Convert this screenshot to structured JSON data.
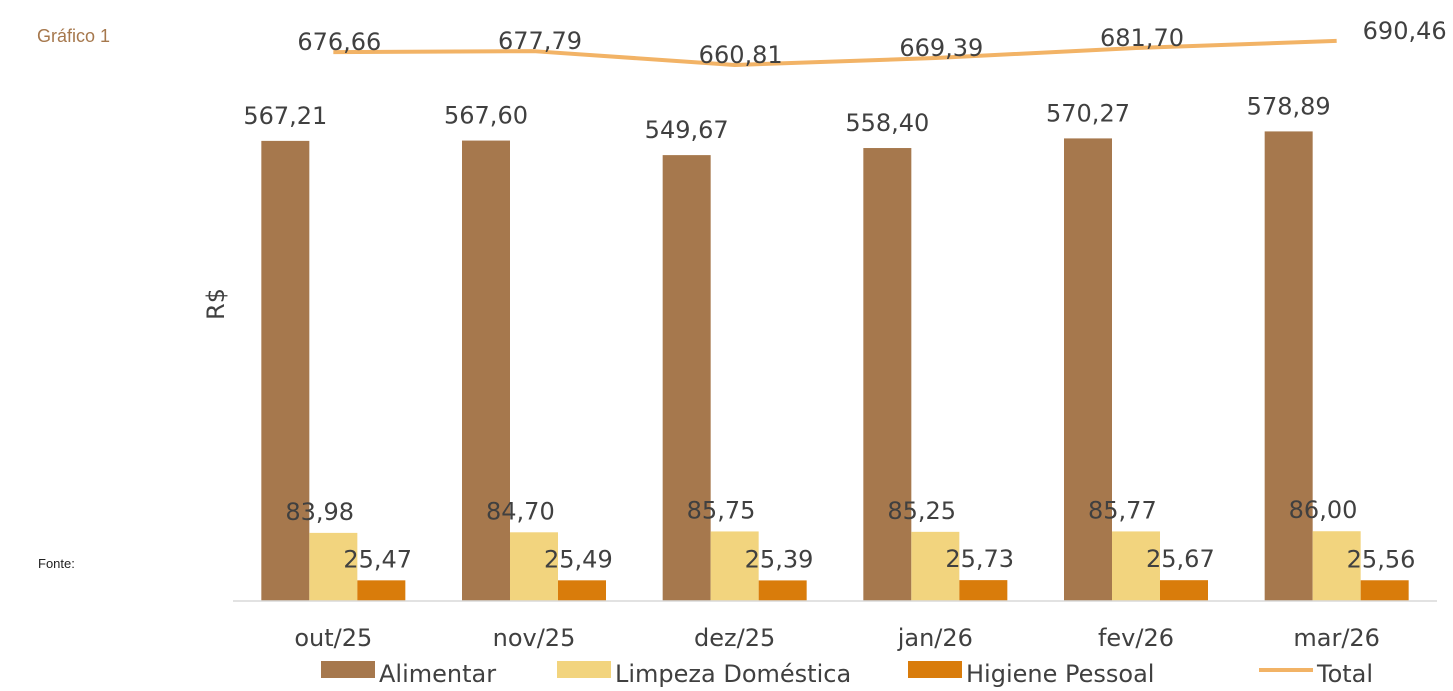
{
  "header": {
    "title": "Gráfico 1"
  },
  "footer": {
    "source": "Fonte:"
  },
  "chart_data": {
    "type": "bar",
    "ylabel": "R$",
    "categories": [
      "out/25",
      "nov/25",
      "dez/25",
      "jan/26",
      "fev/26",
      "mar/26"
    ],
    "series": [
      {
        "name": "Alimentar",
        "type": "bar",
        "color": "#A6784D",
        "values": [
          567.21,
          567.6,
          549.67,
          558.4,
          570.27,
          578.89
        ],
        "labels": [
          "567,21",
          "567,60",
          "549,67",
          "558,40",
          "570,27",
          "578,89"
        ]
      },
      {
        "name": "Limpeza Doméstica",
        "type": "bar",
        "color": "#F2D47E",
        "values": [
          83.98,
          84.7,
          85.75,
          85.25,
          85.77,
          86.0
        ],
        "labels": [
          "83,98",
          "84,70",
          "85,75",
          "85,25",
          "85,77",
          "86,00"
        ]
      },
      {
        "name": "Higiene Pessoal",
        "type": "bar",
        "color": "#D97C0B",
        "values": [
          25.47,
          25.49,
          25.39,
          25.73,
          25.67,
          25.56
        ],
        "labels": [
          "25,47",
          "25,49",
          "25,39",
          "25,73",
          "25,67",
          "25,56"
        ]
      },
      {
        "name": "Total",
        "type": "line",
        "color": "#F2B366",
        "values": [
          676.66,
          677.79,
          660.81,
          669.39,
          681.7,
          690.46
        ],
        "labels": [
          "676,66",
          "677,79",
          "660,81",
          "669,39",
          "681,70",
          "690,46"
        ]
      }
    ],
    "ylim": [
      0,
      715
    ],
    "grid": false,
    "legend": "bottom"
  }
}
